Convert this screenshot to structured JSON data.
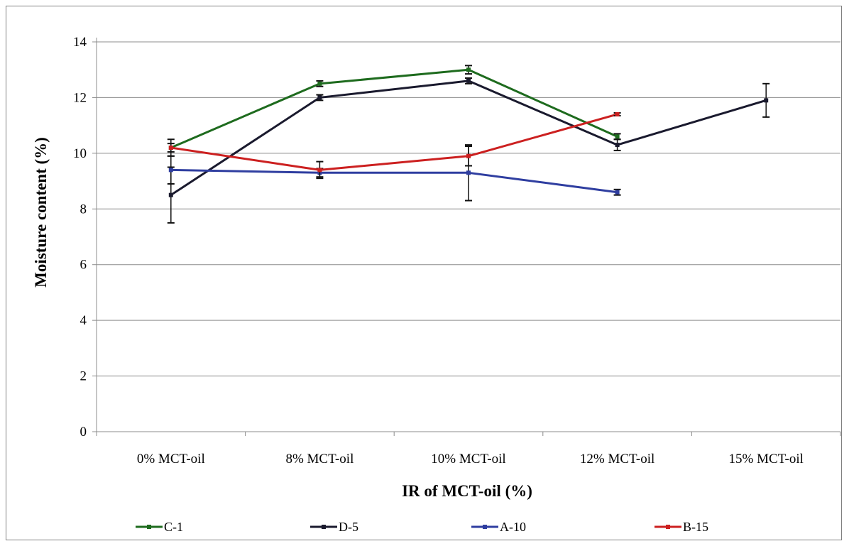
{
  "chart_data": {
    "type": "line",
    "title": "",
    "xlabel": "IR of MCT-oil (%)",
    "ylabel": "Moisture content (%)",
    "categories": [
      "0% MCT-oil",
      "8% MCT-oil",
      "10% MCT-oil",
      "12% MCT-oil",
      "15% MCT-oil"
    ],
    "ylim": [
      0,
      14
    ],
    "yticks": [
      0,
      2,
      4,
      6,
      8,
      10,
      12,
      14
    ],
    "grid": "horizontal",
    "legend_position": "bottom",
    "series": [
      {
        "name": "C-1",
        "color": "#1e6b1e",
        "values": [
          10.2,
          12.5,
          13.0,
          10.6,
          null
        ],
        "errors": [
          0.15,
          0.1,
          0.15,
          0.1,
          null
        ]
      },
      {
        "name": "D-5",
        "color": "#1a1a2e",
        "values": [
          8.5,
          12.0,
          12.6,
          10.3,
          11.9
        ],
        "errors": [
          1.0,
          0.1,
          0.1,
          0.2,
          0.6
        ]
      },
      {
        "name": "A-10",
        "color": "#2f3ea0",
        "values": [
          9.4,
          9.3,
          9.3,
          8.6,
          null
        ],
        "errors": [
          0.5,
          0.15,
          1.0,
          0.1,
          null
        ]
      },
      {
        "name": "B-15",
        "color": "#cc2020",
        "values": [
          10.2,
          9.4,
          9.9,
          11.4,
          null
        ],
        "errors": [
          0.3,
          0.3,
          0.35,
          0.05,
          null
        ]
      }
    ]
  }
}
